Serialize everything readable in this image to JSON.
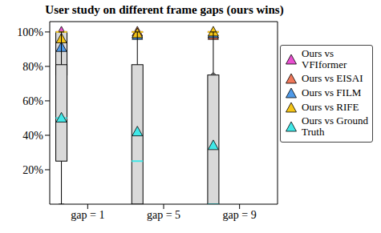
{
  "chart_data": {
    "type": "box",
    "title": "User study on different frame gaps (ours wins)",
    "categories": [
      "gap = 1",
      "gap = 5",
      "gap = 9"
    ],
    "ylim": [
      0,
      106
    ],
    "yticks": [
      {
        "value": 20,
        "label": "20%"
      },
      {
        "value": 40,
        "label": "40%"
      },
      {
        "value": 60,
        "label": "60%"
      },
      {
        "value": 80,
        "label": "80%"
      },
      {
        "value": 100,
        "label": "100%"
      }
    ],
    "grid": false,
    "legend": "right",
    "series": [
      {
        "name": "Ours vs VFIformer",
        "color": "#e94fd0",
        "marker": "triangle",
        "values": [
          100,
          99,
          99
        ],
        "min": [
          100,
          100,
          100
        ],
        "q1": [
          100,
          100,
          100
        ],
        "median": [
          100,
          100,
          100
        ],
        "q3": [
          100,
          100,
          100
        ],
        "max": [
          100,
          100,
          100
        ],
        "outliers": [
          [],
          [],
          []
        ]
      },
      {
        "name": "Ours vs EISAI",
        "color": "#f0785a",
        "marker": "triangle",
        "values": [
          94,
          100,
          98
        ],
        "min": [
          100,
          100,
          100
        ],
        "q1": [
          100,
          100,
          100
        ],
        "median": [
          100,
          100,
          100
        ],
        "q3": [
          100,
          100,
          100
        ],
        "max": [
          100,
          100,
          100
        ],
        "outliers": [
          [
            75,
            50
          ],
          [],
          [
            75
          ]
        ]
      },
      {
        "name": "Ours vs FILM",
        "color": "#4f9ae8",
        "marker": "triangle",
        "values": [
          91,
          98,
          99
        ],
        "min": [
          50,
          100,
          100
        ],
        "q1": [
          75,
          100,
          100
        ],
        "median": [
          100,
          100,
          100
        ],
        "q3": [
          100,
          100,
          100
        ],
        "max": [
          100,
          100,
          100
        ],
        "outliers": [
          [],
          [
            75
          ],
          [
            75
          ]
        ]
      },
      {
        "name": "Ours vs RIFE",
        "color": "#f5c518",
        "marker": "triangle",
        "values": [
          96,
          99,
          100
        ],
        "min": [
          100,
          100,
          100
        ],
        "q1": [
          100,
          100,
          100
        ],
        "median": [
          100,
          100,
          100
        ],
        "q3": [
          100,
          100,
          100
        ],
        "max": [
          100,
          100,
          100
        ],
        "outliers": [
          [
            75,
            50
          ],
          [
            75
          ],
          []
        ]
      },
      {
        "name": "Ours vs Ground Truth",
        "color": "#40e8e8",
        "marker": "triangle",
        "values": [
          50,
          42,
          34
        ],
        "min": [
          0,
          0,
          0
        ],
        "q1": [
          25,
          0,
          0
        ],
        "median": [
          50,
          25,
          0
        ],
        "q3": [
          81,
          81,
          75
        ],
        "max": [
          100,
          100,
          100
        ],
        "outliers": [
          [],
          [],
          []
        ]
      }
    ]
  }
}
